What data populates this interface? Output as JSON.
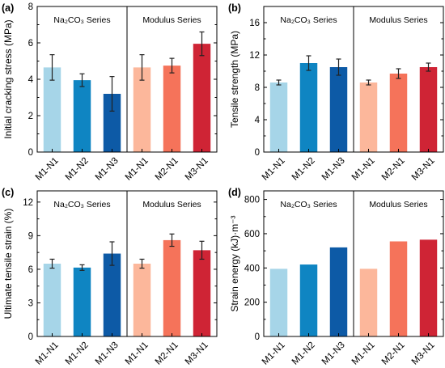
{
  "chart_data": [
    {
      "panel": "(a)",
      "type": "bar",
      "ylabel": "Initial cracking stress (MPa)",
      "ylim": [
        0,
        8
      ],
      "yticks": [
        0,
        2,
        4,
        6,
        8
      ],
      "groups": [
        "Na₂CO₃ Series",
        "Modulus Series"
      ],
      "categories": [
        "M1-N1",
        "M1-N2",
        "M1-N3",
        "M1-N1",
        "M2-N1",
        "M3-N1"
      ],
      "values": [
        4.65,
        3.95,
        3.2,
        4.65,
        4.75,
        5.95
      ],
      "errors": [
        0.7,
        0.35,
        0.95,
        0.7,
        0.4,
        0.65
      ]
    },
    {
      "panel": "(b)",
      "type": "bar",
      "ylabel": "Tensile strength (MPa)",
      "ylim": [
        0,
        18
      ],
      "yticks": [
        0,
        4,
        8,
        12,
        16
      ],
      "groups": [
        "Na₂CO₃ Series",
        "Modulus Series"
      ],
      "categories": [
        "M1-N1",
        "M1-N2",
        "M1-N3",
        "M1-N1",
        "M2-N1",
        "M3-N1"
      ],
      "values": [
        8.6,
        11.0,
        10.5,
        8.6,
        9.7,
        10.5
      ],
      "errors": [
        0.3,
        0.9,
        1.0,
        0.3,
        0.6,
        0.5
      ]
    },
    {
      "panel": "(c)",
      "type": "bar",
      "ylabel": "Ultimate tensile strain (%)",
      "ylim": [
        0,
        13
      ],
      "yticks": [
        0,
        3,
        6,
        9,
        12
      ],
      "groups": [
        "Na₂CO₃ Series",
        "Modulus Series"
      ],
      "categories": [
        "M1-N1",
        "M1-N2",
        "M1-N3",
        "M1-N1",
        "M2-N1",
        "M3-N1"
      ],
      "values": [
        6.5,
        6.15,
        7.4,
        6.5,
        8.6,
        7.7
      ],
      "errors": [
        0.4,
        0.25,
        1.05,
        0.4,
        0.55,
        0.8
      ]
    },
    {
      "panel": "(d)",
      "type": "bar",
      "ylabel": "Strain energy (kJ)·m⁻³",
      "ylim": [
        0,
        850
      ],
      "yticks": [
        0,
        200,
        400,
        600,
        800
      ],
      "groups": [
        "Na₂CO₃ Series",
        "Modulus Series"
      ],
      "categories": [
        "M1-N1",
        "M1-N2",
        "M1-N3",
        "M1-N1",
        "M2-N1",
        "M3-N1"
      ],
      "values": [
        395,
        420,
        520,
        395,
        555,
        565
      ],
      "errors": null
    }
  ],
  "colors": [
    "#a6d5e8",
    "#0f85c2",
    "#0d5aa6",
    "#fcb79b",
    "#f5735a",
    "#cf2435"
  ]
}
